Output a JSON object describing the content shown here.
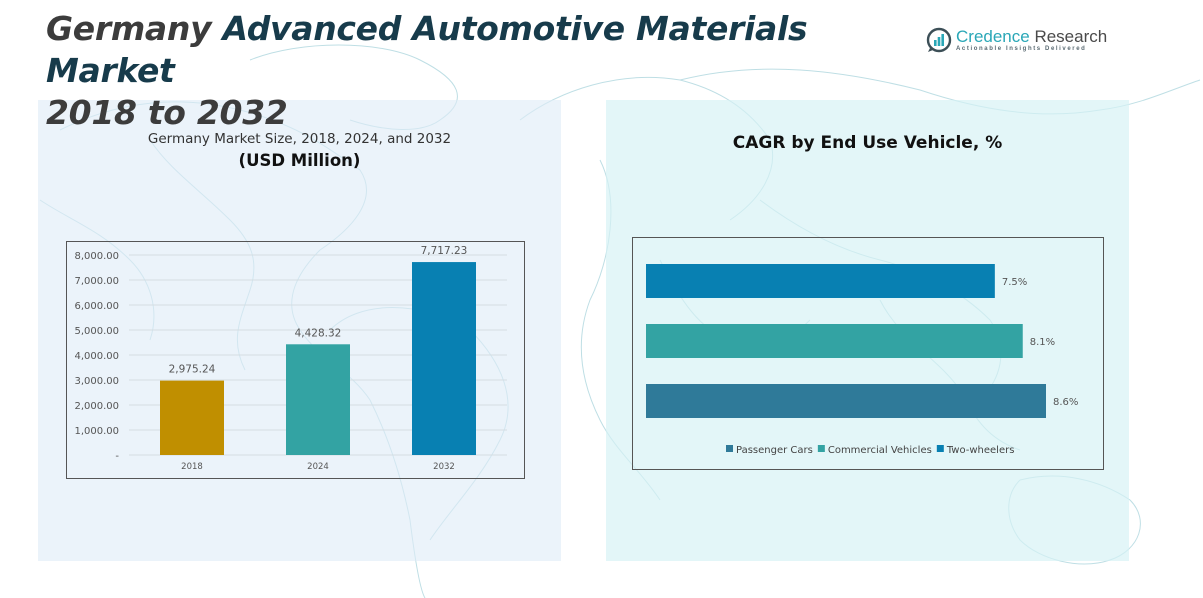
{
  "header": {
    "title_part1": "Germany ",
    "title_part2": "Advanced Automotive Materials Market",
    "title_line2": "2018 to 2032"
  },
  "logo": {
    "icon": "bar-chart-icon",
    "name_part1": "Credence",
    "name_part2": " Research",
    "tagline": "Actionable Insights Delivered"
  },
  "colors": {
    "gold": "#c08f00",
    "teal": "#33a3a3",
    "blue": "#0880b2",
    "steel_blue": "#2f7a99",
    "title_dark": "#173b4b"
  },
  "chart_data": [
    {
      "type": "bar",
      "title": "Germany Market Size, 2018, 2024, and 2032",
      "subtitle": "(USD Million)",
      "xlabel": "",
      "ylabel": "",
      "categories": [
        "2018",
        "2024",
        "2032"
      ],
      "values": [
        2975.24,
        4428.32,
        7717.23
      ],
      "data_labels": [
        "2,975.24",
        "4,428.32",
        "7,717.23"
      ],
      "bar_colors": [
        "#c08f00",
        "#33a3a3",
        "#0880b2"
      ],
      "ylim": [
        0,
        8000
      ],
      "yticks": [
        0,
        1000,
        2000,
        3000,
        4000,
        5000,
        6000,
        7000,
        8000
      ],
      "ytick_labels": [
        "-",
        "1,000.00",
        "2,000.00",
        "3,000.00",
        "4,000.00",
        "5,000.00",
        "6,000.00",
        "7,000.00",
        "8,000.00"
      ],
      "grid": true,
      "legend": "none"
    },
    {
      "type": "bar",
      "orientation": "horizontal",
      "title": "CAGR by End Use Vehicle, %",
      "categories": [
        "Two-wheelers",
        "Commercial Vehicles",
        "Passenger Cars"
      ],
      "values": [
        7.5,
        8.1,
        8.6
      ],
      "data_labels": [
        "7.5%",
        "8.1%",
        "8.6%"
      ],
      "bar_colors": [
        "#0880b2",
        "#33a3a3",
        "#2f7a99"
      ],
      "unit": "%",
      "grid": false,
      "legend_position": "bottom",
      "legend": [
        {
          "label": "Passenger Cars",
          "color": "#2f7a99"
        },
        {
          "label": "Commercial Vehicles",
          "color": "#33a3a3"
        },
        {
          "label": "Two-wheelers",
          "color": "#0880b2"
        }
      ]
    }
  ]
}
